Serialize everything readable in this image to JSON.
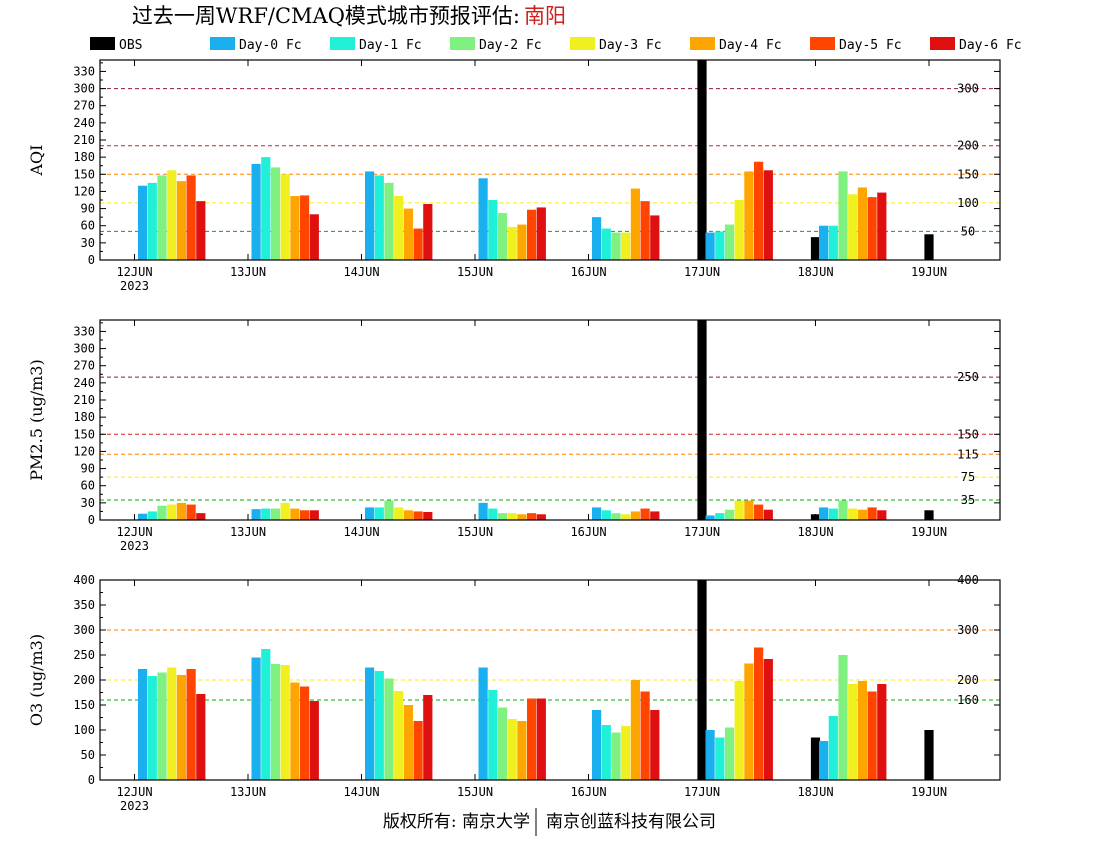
{
  "header": {
    "title": "过去一周WRF/CMAQ模式城市预报评估: ",
    "city": "南阳",
    "city_color": "#d02020"
  },
  "footer": {
    "left": "版权所有: 南京大学",
    "right": "南京创蓝科技有限公司"
  },
  "chart_data": [
    {
      "type": "bar",
      "panel": "aqi",
      "ylabel": "AQI",
      "ylim": [
        0,
        350
      ],
      "yticks": [
        0,
        30,
        60,
        90,
        120,
        150,
        180,
        210,
        240,
        270,
        300,
        330
      ],
      "x_labels": [
        "12JUN",
        "13JUN",
        "14JUN",
        "15JUN",
        "16JUN",
        "17JUN",
        "18JUN",
        "19JUN"
      ],
      "x_year": "2023",
      "thresholds": [
        {
          "value": 300,
          "label": "300",
          "color": "#8b1a3a"
        },
        {
          "value": 200,
          "label": "200",
          "color": "#d42020"
        },
        {
          "value": 150,
          "label": "150",
          "color": "#ff8000"
        },
        {
          "value": 100,
          "label": "100",
          "color": "#ffee00"
        },
        {
          "value": 50,
          "label": "50",
          "color": "#00b000"
        }
      ],
      "series": [
        {
          "name": "OBS",
          "color": "#000000",
          "values": [
            null,
            null,
            null,
            null,
            null,
            350,
            40,
            45
          ]
        },
        {
          "name": "Day-0 Fc",
          "color": "#1ab0f0",
          "values": [
            130,
            168,
            155,
            143,
            75,
            48,
            60,
            null
          ]
        },
        {
          "name": "Day-1 Fc",
          "color": "#20f0d8",
          "values": [
            135,
            180,
            148,
            105,
            55,
            50,
            60,
            null
          ]
        },
        {
          "name": "Day-2 Fc",
          "color": "#80f080",
          "values": [
            148,
            162,
            135,
            82,
            48,
            62,
            155,
            null
          ]
        },
        {
          "name": "Day-3 Fc",
          "color": "#f0f020",
          "values": [
            157,
            150,
            112,
            58,
            48,
            105,
            115,
            null
          ]
        },
        {
          "name": "Day-4 Fc",
          "color": "#ffa500",
          "values": [
            138,
            112,
            90,
            62,
            125,
            155,
            127,
            null
          ]
        },
        {
          "name": "Day-5 Fc",
          "color": "#ff4500",
          "values": [
            148,
            113,
            55,
            88,
            103,
            172,
            110,
            null
          ]
        },
        {
          "name": "Day-6 Fc",
          "color": "#e01010",
          "values": [
            103,
            80,
            98,
            92,
            78,
            157,
            118,
            null
          ]
        }
      ]
    },
    {
      "type": "bar",
      "panel": "pm25",
      "ylabel": "PM2.5 (ug/m3)",
      "ylim": [
        0,
        350
      ],
      "yticks": [
        0,
        30,
        60,
        90,
        120,
        150,
        180,
        210,
        240,
        270,
        300,
        330
      ],
      "x_labels": [
        "12JUN",
        "13JUN",
        "14JUN",
        "15JUN",
        "16JUN",
        "17JUN",
        "18JUN",
        "19JUN"
      ],
      "x_year": "2023",
      "thresholds": [
        {
          "value": 250,
          "label": "250",
          "color": "#8b1a3a"
        },
        {
          "value": 150,
          "label": "150",
          "color": "#d42020"
        },
        {
          "value": 115,
          "label": "115",
          "color": "#ff8000"
        },
        {
          "value": 75,
          "label": "75",
          "color": "#ffee00"
        },
        {
          "value": 35,
          "label": "35",
          "color": "#00b000"
        }
      ],
      "series": [
        {
          "name": "OBS",
          "color": "#000000",
          "values": [
            null,
            null,
            null,
            null,
            null,
            350,
            10,
            17
          ]
        },
        {
          "name": "Day-0 Fc",
          "color": "#1ab0f0",
          "values": [
            11,
            19,
            22,
            30,
            22,
            8,
            22,
            null
          ]
        },
        {
          "name": "Day-1 Fc",
          "color": "#20f0d8",
          "values": [
            15,
            20,
            22,
            20,
            17,
            12,
            20,
            null
          ]
        },
        {
          "name": "Day-2 Fc",
          "color": "#80f080",
          "values": [
            25,
            20,
            34,
            12,
            12,
            18,
            34,
            null
          ]
        },
        {
          "name": "Day-3 Fc",
          "color": "#f0f020",
          "values": [
            27,
            30,
            22,
            12,
            10,
            34,
            20,
            null
          ]
        },
        {
          "name": "Day-4 Fc",
          "color": "#ffa500",
          "values": [
            30,
            20,
            17,
            10,
            15,
            34,
            18,
            null
          ]
        },
        {
          "name": "Day-5 Fc",
          "color": "#ff4500",
          "values": [
            27,
            17,
            15,
            12,
            20,
            27,
            22,
            null
          ]
        },
        {
          "name": "Day-6 Fc",
          "color": "#e01010",
          "values": [
            12,
            17,
            14,
            10,
            15,
            18,
            17,
            null
          ]
        }
      ]
    },
    {
      "type": "bar",
      "panel": "o3",
      "ylabel": "O3 (ug/m3)",
      "ylim": [
        0,
        400
      ],
      "yticks": [
        0,
        50,
        100,
        150,
        200,
        250,
        300,
        350,
        400
      ],
      "x_labels": [
        "12JUN",
        "13JUN",
        "14JUN",
        "15JUN",
        "16JUN",
        "17JUN",
        "18JUN",
        "19JUN"
      ],
      "x_year": "2023",
      "thresholds": [
        {
          "value": 400,
          "label": "400",
          "color": "#d42020"
        },
        {
          "value": 300,
          "label": "300",
          "color": "#ff8000"
        },
        {
          "value": 200,
          "label": "200",
          "color": "#ffee00"
        },
        {
          "value": 160,
          "label": "160",
          "color": "#00b000"
        }
      ],
      "series": [
        {
          "name": "OBS",
          "color": "#000000",
          "values": [
            null,
            null,
            null,
            null,
            null,
            400,
            85,
            100
          ]
        },
        {
          "name": "Day-0 Fc",
          "color": "#1ab0f0",
          "values": [
            222,
            245,
            225,
            225,
            140,
            100,
            78,
            null
          ]
        },
        {
          "name": "Day-1 Fc",
          "color": "#20f0d8",
          "values": [
            208,
            262,
            218,
            180,
            110,
            85,
            128,
            null
          ]
        },
        {
          "name": "Day-2 Fc",
          "color": "#80f080",
          "values": [
            215,
            232,
            203,
            145,
            95,
            105,
            250,
            null
          ]
        },
        {
          "name": "Day-3 Fc",
          "color": "#f0f020",
          "values": [
            225,
            230,
            178,
            122,
            108,
            198,
            192,
            null
          ]
        },
        {
          "name": "Day-4 Fc",
          "color": "#ffa500",
          "values": [
            210,
            195,
            150,
            118,
            200,
            233,
            198,
            null
          ]
        },
        {
          "name": "Day-5 Fc",
          "color": "#ff4500",
          "values": [
            222,
            187,
            118,
            163,
            177,
            265,
            177,
            null
          ]
        },
        {
          "name": "Day-6 Fc",
          "color": "#e01010",
          "values": [
            172,
            158,
            170,
            163,
            140,
            242,
            192,
            null
          ]
        }
      ]
    }
  ]
}
